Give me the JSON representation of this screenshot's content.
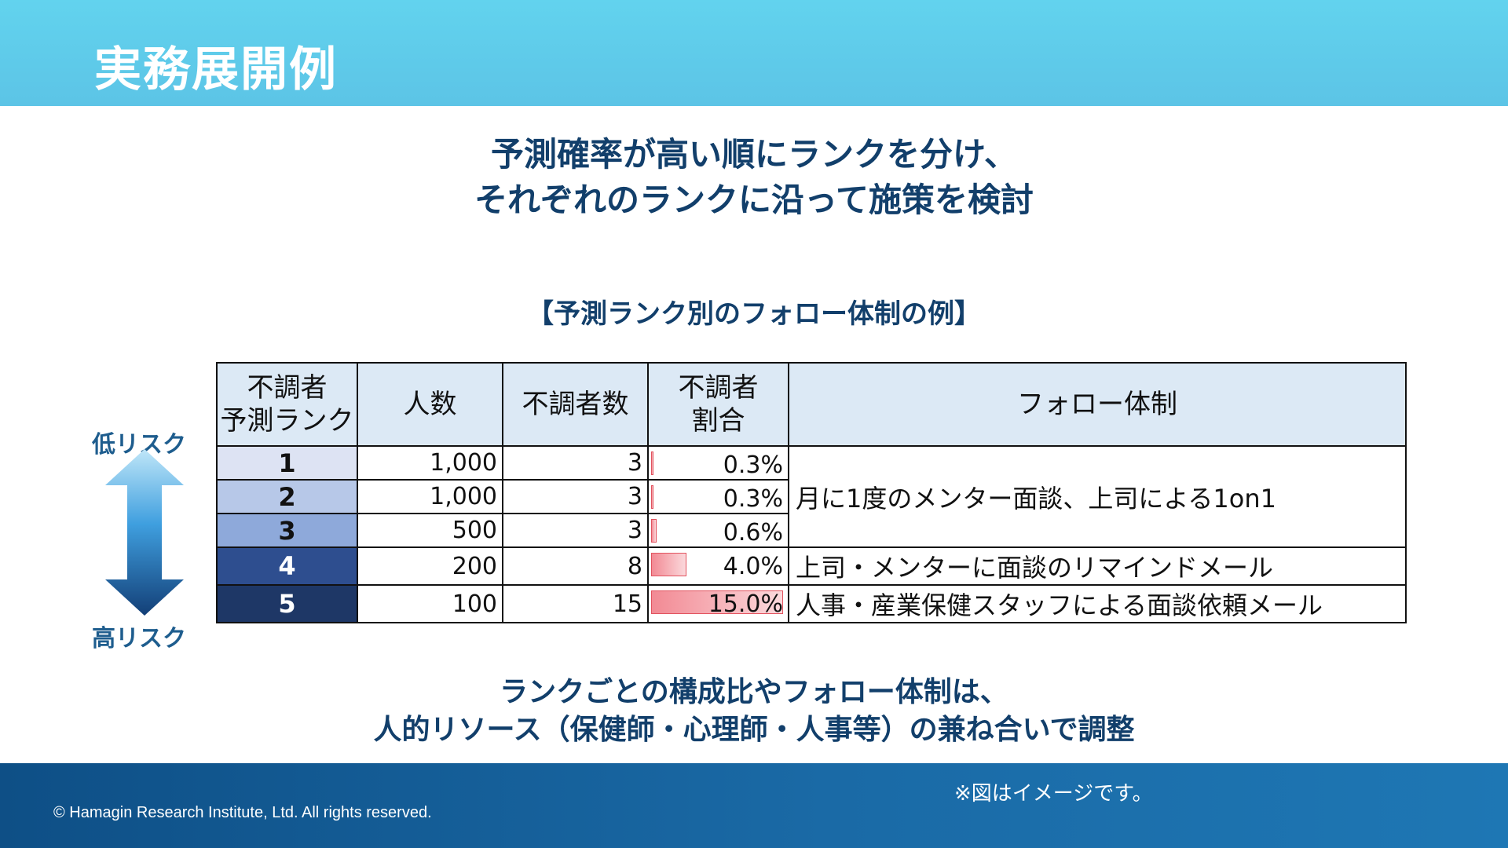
{
  "header": {
    "title": "実務展開例"
  },
  "lead": {
    "line1": "予測確率が高い順にランクを分け、",
    "line2": "それぞれのランクに沿って施策を検討"
  },
  "table_caption": "【予測ランク別のフォロー体制の例】",
  "table": {
    "headers": {
      "rank_line1": "不調者",
      "rank_line2": "予測ランク",
      "people": "人数",
      "cases": "不調者数",
      "ratio_line1": "不調者",
      "ratio_line2": "割合",
      "follow": "フォロー体制"
    },
    "rows": [
      {
        "rank": "1",
        "people": "1,000",
        "cases": "3",
        "ratio": "0.3%",
        "ratio_value": 0.3
      },
      {
        "rank": "2",
        "people": "1,000",
        "cases": "3",
        "ratio": "0.3%",
        "ratio_value": 0.3
      },
      {
        "rank": "3",
        "people": "500",
        "cases": "3",
        "ratio": "0.6%",
        "ratio_value": 0.6
      },
      {
        "rank": "4",
        "people": "200",
        "cases": "8",
        "ratio": "4.0%",
        "ratio_value": 4.0
      },
      {
        "rank": "5",
        "people": "100",
        "cases": "15",
        "ratio": "15.0%",
        "ratio_value": 15.0
      }
    ],
    "follow": [
      "月に1度のメンター面談、上司による1on1",
      "上司・メンターに面談のリマインドメール",
      "人事・産業保健スタッフによる面談依頼メール"
    ],
    "ratio_max": 15.0
  },
  "risk_axis": {
    "low": "低リスク",
    "high": "高リスク"
  },
  "note": {
    "line1": "ランクごとの構成比やフォロー体制は、",
    "line2": "人的リソース（保健師・心理師・人事等）の兼ね合いで調整"
  },
  "footer": {
    "disclaimer": "※図はイメージです。",
    "copyright": "© Hamagin Research Institute, Ltd.  All rights reserved."
  },
  "colors": {
    "rank_fill": [
      "#dde3f3",
      "#b7c8e8",
      "#8ea9da",
      "#2e4e8f",
      "#1e3766"
    ],
    "rank_text": [
      "#111111",
      "#111111",
      "#111111",
      "#ffffff",
      "#ffffff"
    ],
    "title_navy": "#123f6b"
  }
}
